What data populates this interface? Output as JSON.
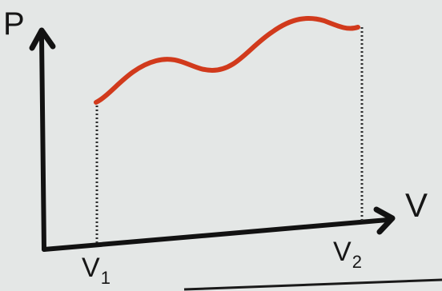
{
  "diagram": {
    "y_axis_label": "P",
    "x_axis_label": "V",
    "marks": [
      {
        "base": "V",
        "sub": "1"
      },
      {
        "base": "V",
        "sub": "2"
      }
    ],
    "colors": {
      "background": "#e4e7e6",
      "axes": "#121212",
      "curve": "#d13a1c"
    }
  }
}
